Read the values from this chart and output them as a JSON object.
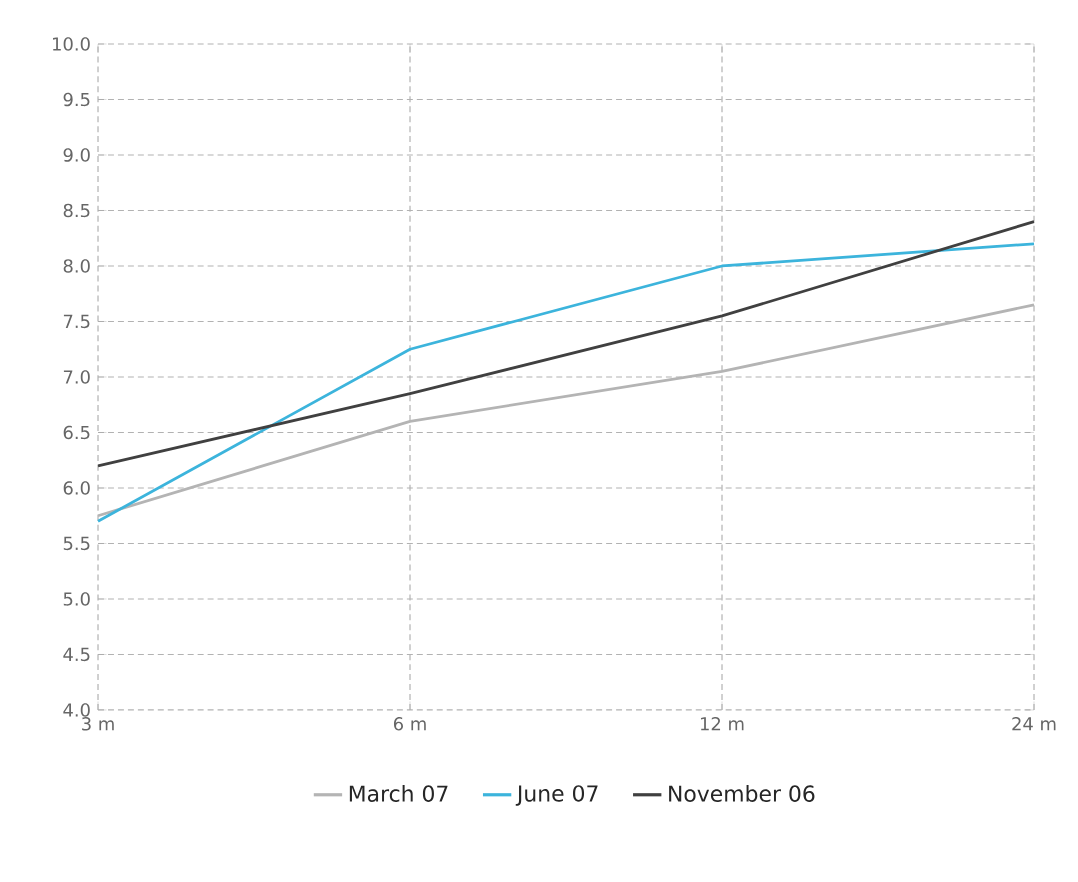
{
  "chart_data": {
    "type": "line",
    "categories": [
      "3 m",
      "6 m",
      "12 m",
      "24 m"
    ],
    "series": [
      {
        "name": "March 07",
        "color": "#b4b4b4",
        "values": [
          5.75,
          6.6,
          7.05,
          7.65
        ]
      },
      {
        "name": "June 07",
        "color": "#3cb4dc",
        "values": [
          5.7,
          7.25,
          8.0,
          8.2
        ]
      },
      {
        "name": "November 06",
        "color": "#404040",
        "values": [
          6.2,
          6.85,
          7.55,
          8.4
        ]
      }
    ],
    "ylim": [
      4.0,
      10.0
    ],
    "yticks": [
      {
        "value": 4.0,
        "label": "4.0"
      },
      {
        "value": 4.5,
        "label": "4.5"
      },
      {
        "value": 5.0,
        "label": "5.0"
      },
      {
        "value": 5.5,
        "label": "5.5"
      },
      {
        "value": 6.0,
        "label": "6.0"
      },
      {
        "value": 6.5,
        "label": "6.5"
      },
      {
        "value": 7.0,
        "label": "7.0"
      },
      {
        "value": 7.5,
        "label": "7.5"
      },
      {
        "value": 8.0,
        "label": "8.0"
      },
      {
        "value": 8.5,
        "label": "8.5"
      },
      {
        "value": 9.0,
        "label": "9.0"
      },
      {
        "value": 9.5,
        "label": "9.5"
      },
      {
        "value": 10.0,
        "label": "10.0"
      }
    ],
    "grid": true,
    "legend": "bottom",
    "marker": "none",
    "line_style": "solid"
  }
}
